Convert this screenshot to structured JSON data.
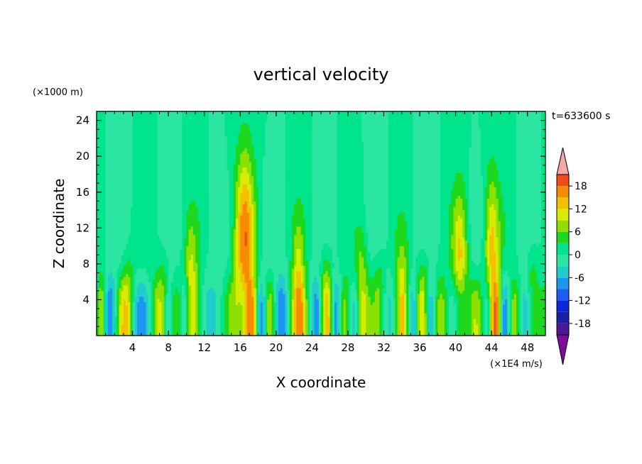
{
  "chart_data": {
    "type": "heatmap",
    "title": "vertical velocity",
    "xlabel": "X coordinate",
    "ylabel": "Z coordinate",
    "y_unit": "(×1000 m)",
    "colorbar_unit": "(×1E4 m/s)",
    "time_label": "t=633600 s",
    "xlim": [
      0,
      50
    ],
    "ylim": [
      0,
      25
    ],
    "x_ticks": [
      4,
      8,
      12,
      16,
      20,
      24,
      28,
      32,
      36,
      40,
      44,
      48
    ],
    "y_ticks": [
      4,
      8,
      12,
      16,
      20,
      24
    ],
    "colorbar": {
      "levels": [
        -21,
        -18,
        -15,
        -12,
        -9,
        -6,
        -3,
        0,
        3,
        6,
        9,
        12,
        15,
        18,
        21
      ],
      "tick_labels": [
        18,
        12,
        6,
        0,
        -6,
        -12,
        -18
      ],
      "colors": [
        "#4a1896",
        "#1c1ea4",
        "#0a28d8",
        "#1e5cf2",
        "#1c96f0",
        "#22cccc",
        "#2ae6a2",
        "#00e48c",
        "#1ed81e",
        "#8ee000",
        "#d8ec00",
        "#f2c200",
        "#f88c00",
        "#f04c1a",
        "#e82020"
      ],
      "over_color": "#f4a8a8",
      "under_color": "#7c0c9c"
    },
    "cells": [
      {
        "x": 16.5,
        "z_top": 23,
        "amplitude": 16,
        "width": 0.8
      },
      {
        "x": 44,
        "z_top": 20,
        "amplitude": 13,
        "width": 0.6
      },
      {
        "x": 40.5,
        "z_top": 18,
        "amplitude": 12,
        "width": 0.6
      },
      {
        "x": 10.5,
        "z_top": 14,
        "amplitude": 9,
        "width": 0.5
      },
      {
        "x": 22.5,
        "z_top": 14,
        "amplitude": 9,
        "width": 0.5
      },
      {
        "x": 29.5,
        "z_top": 13,
        "amplitude": 8,
        "width": 0.5
      },
      {
        "x": 34,
        "z_top": 12,
        "amplitude": 8,
        "width": 0.5
      },
      {
        "x": 3.5,
        "z_top": 10,
        "amplitude": 7,
        "width": 0.5
      },
      {
        "x": 7.5,
        "z_top": 10,
        "amplitude": 7,
        "width": 0.5
      },
      {
        "x": 25.5,
        "z_top": 11,
        "amplitude": 7,
        "width": 0.5
      },
      {
        "x": 31.5,
        "z_top": 10,
        "amplitude": 7,
        "width": 0.5
      },
      {
        "x": 36.5,
        "z_top": 10,
        "amplitude": 7,
        "width": 0.5
      },
      {
        "x": 48.5,
        "z_top": 11,
        "amplitude": 7,
        "width": 0.5
      }
    ]
  }
}
